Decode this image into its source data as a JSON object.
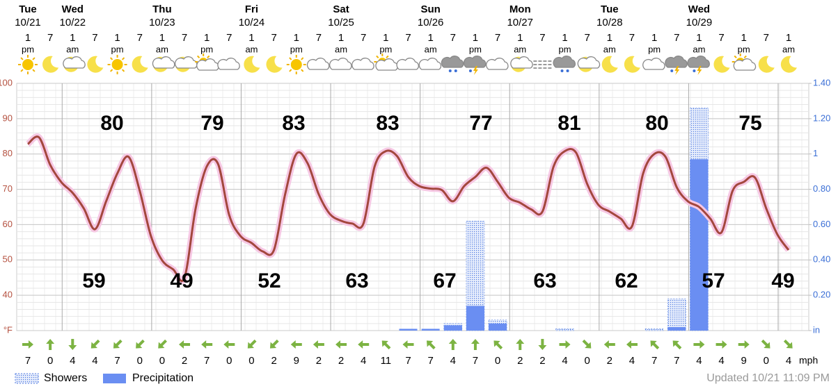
{
  "chart_data": {
    "type": "weather",
    "days": [
      {
        "name": "Tue",
        "date": "10/21"
      },
      {
        "name": "Wed",
        "date": "10/22"
      },
      {
        "name": "Thu",
        "date": "10/23"
      },
      {
        "name": "Fri",
        "date": "10/24"
      },
      {
        "name": "Sat",
        "date": "10/25"
      },
      {
        "name": "Sun",
        "date": "10/26"
      },
      {
        "name": "Mon",
        "date": "10/27"
      },
      {
        "name": "Tue",
        "date": "10/28"
      },
      {
        "name": "Wed",
        "date": "10/29"
      }
    ],
    "hours": [
      1,
      7,
      1,
      7,
      1,
      7,
      1,
      7,
      1,
      7,
      1,
      7,
      1,
      7,
      1,
      7,
      1,
      7,
      1,
      7,
      1,
      7,
      1,
      7,
      1,
      7,
      1,
      7,
      1,
      7,
      1,
      7,
      1,
      7,
      1
    ],
    "periods": [
      "pm",
      null,
      "am",
      null,
      "pm",
      null,
      "am",
      null,
      "pm",
      null,
      "am",
      null,
      "pm",
      null,
      "am",
      null,
      "pm",
      null,
      "am",
      null,
      "pm",
      null,
      "am",
      null,
      "pm",
      null,
      "am",
      null,
      "pm",
      null,
      "am",
      null,
      "pm",
      null,
      "am"
    ],
    "ylim": [
      30,
      100
    ],
    "yticks": [
      {
        "value": 30,
        "label": "°F"
      },
      40,
      50,
      60,
      70,
      80,
      90,
      100
    ],
    "y2lim": [
      0,
      1.4
    ],
    "y2ticks": [
      {
        "value": 0,
        "label": "in"
      },
      {
        "value": 0.2,
        "label": "0.20"
      },
      {
        "value": 0.4,
        "label": "0.40"
      },
      {
        "value": 0.6,
        "label": "0.60"
      },
      {
        "value": 0.8,
        "label": "0.80"
      },
      1,
      {
        "value": 1.2,
        "label": "1.20"
      },
      {
        "value": 1.4,
        "label": "1.40"
      }
    ],
    "grid": true,
    "temperature": {
      "color": "#a3473d",
      "values": [
        82.8,
        84.7,
        76.9,
        72,
        69,
        64.6,
        58.7,
        66.6,
        74.5,
        79.2,
        69.6,
        56.8,
        49.9,
        47.3,
        45,
        64.6,
        76.5,
        77.2,
        62.7,
        56.8,
        54.8,
        52.4,
        52.8,
        68.6,
        80,
        77.4,
        68.6,
        63,
        61.1,
        60.3,
        60.3,
        76.5,
        80.8,
        79.4,
        73.5,
        70.9,
        70.2,
        69.8,
        66.6,
        70.9,
        73.5,
        76.1,
        72.1,
        67.6,
        66.2,
        64.3,
        63.7,
        76.5,
        80.8,
        80.4,
        71.5,
        65.6,
        63.7,
        61.7,
        59.5,
        74.5,
        80,
        79.2,
        70.6,
        66.6,
        65,
        61.7,
        57.8,
        69.6,
        72.1,
        73.3,
        64.6,
        57.2,
        52.8
      ]
    },
    "highs": [
      80,
      79,
      83,
      83,
      77,
      81,
      80,
      75
    ],
    "lows": [
      59,
      49,
      52,
      63,
      67,
      63,
      62,
      57,
      49
    ],
    "series": [
      {
        "name": "Showers",
        "color": "#4f7be0",
        "axis": "y2",
        "values": [
          null,
          null,
          null,
          null,
          null,
          null,
          null,
          null,
          null,
          null,
          null,
          null,
          null,
          null,
          null,
          null,
          null,
          null,
          null,
          0.04,
          0.62,
          0.06,
          null,
          null,
          0.01,
          null,
          null,
          null,
          0.01,
          0.18,
          1.26,
          null,
          null,
          null,
          null
        ]
      },
      {
        "name": "Precipitation",
        "color": "#6a8ef2",
        "axis": "y2",
        "values": [
          null,
          null,
          null,
          null,
          null,
          null,
          null,
          null,
          null,
          null,
          null,
          null,
          null,
          null,
          null,
          null,
          null,
          0.01,
          0.01,
          0.03,
          0.14,
          0.04,
          null,
          null,
          null,
          null,
          null,
          null,
          null,
          0.02,
          0.97,
          null,
          null,
          null,
          null
        ]
      }
    ],
    "wind": {
      "values": [
        7,
        0,
        4,
        4,
        7,
        0,
        0,
        2,
        7,
        0,
        0,
        2,
        9,
        2,
        2,
        4,
        11,
        7,
        7,
        4,
        7,
        0,
        2,
        2,
        4,
        0,
        2,
        4,
        7,
        7,
        4,
        4,
        9,
        0,
        4
      ],
      "unit": "mph"
    },
    "updated": "Updated 10/21 11:09 PM"
  }
}
